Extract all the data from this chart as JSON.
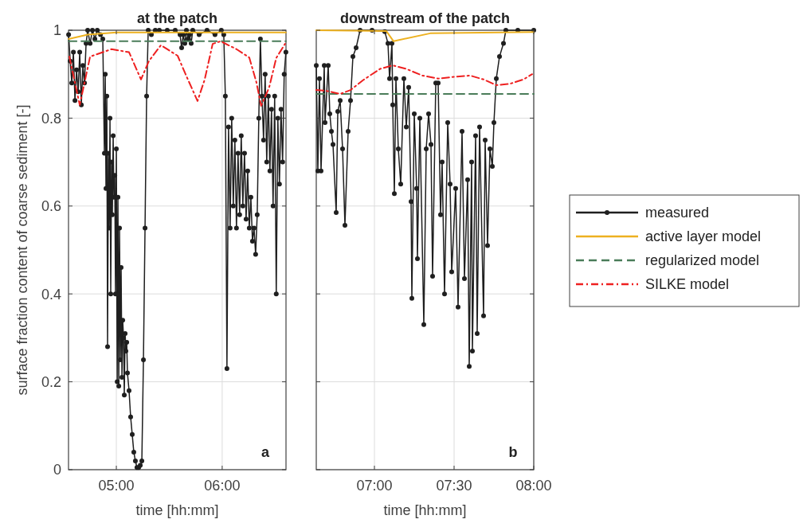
{
  "chart_data": [
    {
      "type": "line",
      "title": "at the patch",
      "xlabel": "time [hh:mm]",
      "ylabel": "surface fraction content of coarse sediment [-]",
      "xlim": [
        4.548,
        6.603
      ],
      "ylim": [
        0,
        1
      ],
      "xticks": [
        {
          "value": 5,
          "label": "05:00"
        },
        {
          "value": 6,
          "label": "06:00"
        }
      ],
      "yticks": [
        0,
        0.2,
        0.4,
        0.6,
        0.8,
        1
      ],
      "grid": true,
      "legend": false,
      "annotations": [
        "a"
      ],
      "series": [
        {
          "color": "#1f1f1f",
          "marker": "circle",
          "line_style": "solid",
          "x": [
            4.549,
            4.564,
            4.579,
            4.594,
            4.609,
            4.624,
            4.639,
            4.654,
            4.669,
            4.684,
            4.699,
            4.714,
            4.729,
            4.752,
            4.774,
            4.797,
            4.82,
            4.85,
            4.872,
            4.887,
            4.895,
            4.902,
            4.91,
            4.917,
            4.925,
            4.932,
            4.94,
            4.947,
            4.955,
            4.962,
            4.97,
            4.977,
            4.985,
            4.992,
            5.0,
            5.008,
            5.015,
            5.023,
            5.03,
            5.038,
            5.045,
            5.053,
            5.06,
            5.068,
            5.075,
            5.083,
            5.09,
            5.098,
            5.105,
            5.12,
            5.135,
            5.15,
            5.165,
            5.18,
            5.195,
            5.211,
            5.226,
            5.241,
            5.256,
            5.271,
            5.286,
            5.301,
            5.331,
            5.368,
            5.406,
            5.481,
            5.556,
            5.602,
            5.617,
            5.632,
            5.647,
            5.662,
            5.677,
            5.692,
            5.707,
            5.722,
            5.782,
            5.857,
            5.932,
            5.992,
            6.015,
            6.03,
            6.045,
            6.06,
            6.075,
            6.09,
            6.105,
            6.12,
            6.135,
            6.15,
            6.165,
            6.18,
            6.195,
            6.211,
            6.226,
            6.241,
            6.256,
            6.271,
            6.286,
            6.301,
            6.316,
            6.331,
            6.346,
            6.361,
            6.376,
            6.391,
            6.406,
            6.421,
            6.436,
            6.451,
            6.466,
            6.481,
            6.496,
            6.511,
            6.526,
            6.541,
            6.556,
            6.571,
            6.586,
            6.602
          ],
          "values": [
            0.99,
            0.93,
            0.88,
            0.95,
            0.84,
            0.91,
            0.86,
            0.95,
            0.83,
            0.92,
            0.88,
            0.97,
            1.0,
            0.97,
            1.0,
            0.98,
            1.0,
            0.99,
            0.98,
            0.72,
            0.9,
            0.64,
            0.85,
            0.28,
            0.72,
            0.55,
            0.8,
            0.4,
            0.7,
            0.58,
            0.76,
            0.62,
            0.67,
            0.4,
            0.73,
            0.2,
            0.62,
            0.19,
            0.55,
            0.25,
            0.46,
            0.21,
            0.34,
            0.3,
            0.17,
            0.31,
            0.27,
            0.29,
            0.22,
            0.18,
            0.12,
            0.08,
            0.04,
            0.02,
            0.005,
            0.005,
            0.01,
            0.02,
            0.25,
            0.55,
            0.85,
            1.0,
            0.99,
            1.0,
            1.0,
            1.0,
            1.0,
            0.99,
            0.96,
            0.99,
            0.97,
            1.0,
            0.98,
            0.99,
            0.97,
            1.0,
            0.99,
            1.0,
            0.99,
            1.0,
            0.99,
            0.85,
            0.23,
            0.78,
            0.55,
            0.8,
            0.6,
            0.75,
            0.55,
            0.72,
            0.58,
            0.76,
            0.6,
            0.72,
            0.57,
            0.68,
            0.55,
            0.62,
            0.52,
            0.55,
            0.49,
            0.58,
            0.8,
            0.98,
            0.85,
            0.75,
            0.9,
            0.7,
            0.85,
            0.68,
            0.82,
            0.6,
            0.85,
            0.4,
            0.8,
            0.65,
            0.82,
            0.7,
            0.9,
            0.95
          ]
        },
        {
          "color": "#edb120",
          "marker": "none",
          "line_style": "solid",
          "x": [
            4.549,
            4.729,
            5.0,
            6.602
          ],
          "values": [
            0.98,
            0.99,
            0.995,
            0.995
          ]
        },
        {
          "color": "#4a7c59",
          "marker": "none",
          "line_style": "dashed",
          "x": [
            4.549,
            6.602
          ],
          "values": [
            0.975,
            0.975
          ]
        },
        {
          "color": "#ee2020",
          "marker": "none",
          "line_style": "dashdot",
          "x": [
            4.556,
            4.654,
            4.752,
            4.955,
            5.12,
            5.233,
            5.308,
            5.421,
            5.579,
            5.654,
            5.767,
            5.835,
            5.91,
            5.985,
            6.135,
            6.256,
            6.323,
            6.368,
            6.444,
            6.511,
            6.594
          ],
          "values": [
            0.94,
            0.83,
            0.94,
            0.957,
            0.95,
            0.888,
            0.93,
            0.966,
            0.942,
            0.9,
            0.839,
            0.888,
            0.969,
            0.975,
            0.957,
            0.938,
            0.882,
            0.828,
            0.87,
            0.937,
            0.969
          ]
        }
      ]
    },
    {
      "type": "line",
      "title": "downstream of the patch",
      "xlabel": "time [hh:mm]",
      "xlim": [
        6.635,
        8
      ],
      "ylim": [
        0,
        1
      ],
      "xticks": [
        {
          "value": 7,
          "label": "07:00"
        },
        {
          "value": 7.5,
          "label": "07:30"
        },
        {
          "value": 8,
          "label": "08:00"
        }
      ],
      "yticks": [
        0,
        0.2,
        0.4,
        0.6,
        0.8,
        1
      ],
      "tick_labels": "x",
      "grid": true,
      "legend": "right",
      "annotations": [
        "b"
      ],
      "series": [
        {
          "name": "measured",
          "color": "#1f1f1f",
          "marker": "circle",
          "line_style": "solid",
          "x": [
            6.635,
            6.645,
            6.655,
            6.665,
            6.685,
            6.69,
            6.71,
            6.72,
            6.73,
            6.74,
            6.76,
            6.77,
            6.785,
            6.8,
            6.815,
            6.835,
            6.85,
            6.865,
            6.885,
            6.91,
            6.985,
            7.065,
            7.085,
            7.095,
            7.11,
            7.115,
            7.125,
            7.135,
            7.15,
            7.165,
            7.185,
            7.2,
            7.215,
            7.23,
            7.235,
            7.25,
            7.265,
            7.27,
            7.285,
            7.31,
            7.325,
            7.34,
            7.355,
            7.365,
            7.385,
            7.4,
            7.415,
            7.425,
            7.44,
            7.46,
            7.475,
            7.485,
            7.51,
            7.525,
            7.55,
            7.565,
            7.585,
            7.595,
            7.61,
            7.615,
            7.635,
            7.645,
            7.66,
            7.685,
            7.695,
            7.71,
            7.725,
            7.74,
            7.75,
            7.765,
            7.785,
            7.81,
            7.825,
            7.9,
            8.0
          ],
          "values": [
            0.92,
            0.68,
            0.89,
            0.68,
            0.92,
            0.79,
            0.92,
            0.81,
            0.77,
            0.74,
            0.585,
            0.815,
            0.84,
            0.73,
            0.556,
            0.77,
            0.84,
            0.94,
            0.96,
            1.0,
            1.0,
            0.997,
            0.97,
            0.89,
            0.97,
            0.83,
            0.628,
            0.89,
            0.73,
            0.65,
            0.89,
            0.78,
            0.87,
            0.61,
            0.39,
            0.81,
            0.64,
            0.48,
            0.8,
            0.33,
            0.73,
            0.81,
            0.74,
            0.44,
            0.88,
            0.88,
            0.58,
            0.7,
            0.4,
            0.79,
            0.65,
            0.45,
            0.64,
            0.37,
            0.77,
            0.435,
            0.66,
            0.235,
            0.7,
            0.27,
            0.76,
            0.31,
            0.78,
            0.35,
            0.75,
            0.51,
            0.73,
            0.69,
            0.79,
            0.89,
            0.94,
            0.97,
            1.0,
            1.0,
            1.0
          ]
        },
        {
          "name": "active layer model",
          "color": "#edb120",
          "marker": "none",
          "line_style": "solid",
          "x": [
            6.635,
            7.075,
            7.12,
            7.35,
            8.0
          ],
          "values": [
            1,
            0.998,
            0.975,
            0.993,
            0.996
          ]
        },
        {
          "name": "regularized model",
          "color": "#4a7c59",
          "marker": "none",
          "line_style": "dashed",
          "x": [
            6.635,
            8.0
          ],
          "values": [
            0.855,
            0.855
          ]
        },
        {
          "name": "SILKE model",
          "color": "#ee2020",
          "marker": "none",
          "line_style": "dashdot",
          "x": [
            6.635,
            6.7,
            6.785,
            6.85,
            6.935,
            7.035,
            7.115,
            7.2,
            7.3,
            7.4,
            7.5,
            7.6,
            7.685,
            7.765,
            7.85,
            7.935,
            7.99
          ],
          "values": [
            0.864,
            0.862,
            0.855,
            0.864,
            0.888,
            0.912,
            0.92,
            0.912,
            0.897,
            0.89,
            0.894,
            0.897,
            0.888,
            0.875,
            0.878,
            0.888,
            0.9
          ]
        }
      ]
    }
  ]
}
